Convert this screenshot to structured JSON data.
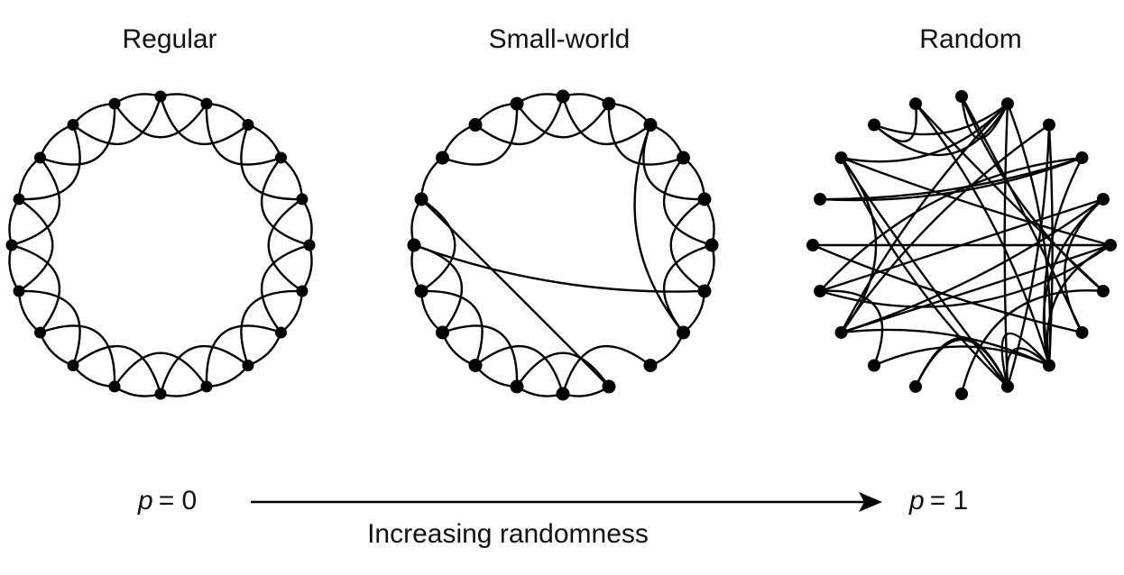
{
  "panels": [
    {
      "title": "Regular"
    },
    {
      "title": "Small-world"
    },
    {
      "title": "Random"
    }
  ],
  "axis": {
    "start": {
      "symbol": "p",
      "rest": "= 0"
    },
    "end": {
      "symbol": "p",
      "rest": "= 1"
    },
    "label": "Increasing randomness"
  }
}
